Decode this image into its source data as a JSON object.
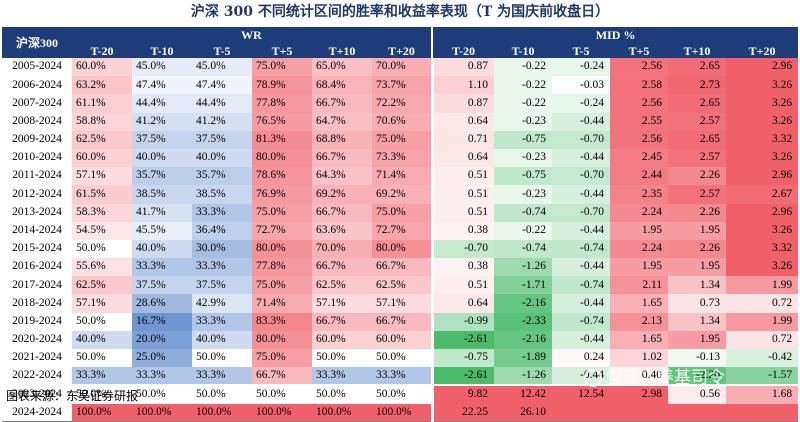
{
  "title": "沪深 300 不同统计区间的胜率和收益率表现（T 为国庆前收盘日）",
  "corner_label": "沪深300",
  "group_labels": {
    "wr": "WR",
    "mid": "MID %"
  },
  "columns": [
    "T-20",
    "T-10",
    "T-5",
    "T+5",
    "T+10",
    "T+20"
  ],
  "rows": [
    {
      "period": "2005-2024",
      "wr": [
        "60.0%",
        "45.0%",
        "45.0%",
        "75.0%",
        "65.0%",
        "70.0%"
      ],
      "mid": [
        "0.87",
        "-0.22",
        "-0.24",
        "2.56",
        "2.65",
        "2.96"
      ]
    },
    {
      "period": "2006-2024",
      "wr": [
        "63.2%",
        "47.4%",
        "47.4%",
        "78.9%",
        "68.4%",
        "73.7%"
      ],
      "mid": [
        "1.10",
        "-0.22",
        "-0.03",
        "2.58",
        "2.73",
        "3.26"
      ]
    },
    {
      "period": "2007-2024",
      "wr": [
        "61.1%",
        "44.4%",
        "44.4%",
        "77.8%",
        "66.7%",
        "72.2%"
      ],
      "mid": [
        "0.87",
        "-0.22",
        "-0.24",
        "2.56",
        "2.65",
        "3.26"
      ]
    },
    {
      "period": "2008-2024",
      "wr": [
        "58.8%",
        "41.2%",
        "41.2%",
        "76.5%",
        "64.7%",
        "70.6%"
      ],
      "mid": [
        "0.64",
        "-0.23",
        "-0.44",
        "2.55",
        "2.57",
        "3.26"
      ]
    },
    {
      "period": "2009-2024",
      "wr": [
        "62.5%",
        "37.5%",
        "37.5%",
        "81.3%",
        "68.8%",
        "75.0%"
      ],
      "mid": [
        "0.71",
        "-0.75",
        "-0.70",
        "2.56",
        "2.65",
        "3.32"
      ]
    },
    {
      "period": "2010-2024",
      "wr": [
        "60.0%",
        "40.0%",
        "40.0%",
        "80.0%",
        "66.7%",
        "73.3%"
      ],
      "mid": [
        "0.64",
        "-0.23",
        "-0.44",
        "2.45",
        "2.57",
        "3.26"
      ]
    },
    {
      "period": "2011-2024",
      "wr": [
        "57.1%",
        "35.7%",
        "35.7%",
        "78.6%",
        "64.3%",
        "71.4%"
      ],
      "mid": [
        "0.51",
        "-0.75",
        "-0.70",
        "2.44",
        "2.26",
        "2.96"
      ]
    },
    {
      "period": "2012-2024",
      "wr": [
        "61.5%",
        "38.5%",
        "38.5%",
        "76.9%",
        "69.2%",
        "69.2%"
      ],
      "mid": [
        "0.51",
        "-0.23",
        "-0.44",
        "2.35",
        "2.57",
        "2.67"
      ]
    },
    {
      "period": "2013-2024",
      "wr": [
        "58.3%",
        "41.7%",
        "33.3%",
        "75.0%",
        "66.7%",
        "75.0%"
      ],
      "mid": [
        "0.51",
        "-0.74",
        "-0.70",
        "2.24",
        "2.26",
        "2.96"
      ]
    },
    {
      "period": "2014-2024",
      "wr": [
        "54.5%",
        "45.5%",
        "36.4%",
        "72.7%",
        "63.6%",
        "72.7%"
      ],
      "mid": [
        "0.38",
        "-0.22",
        "-0.44",
        "1.95",
        "1.95",
        "3.26"
      ]
    },
    {
      "period": "2015-2024",
      "wr": [
        "50.0%",
        "40.0%",
        "30.0%",
        "80.0%",
        "70.0%",
        "80.0%"
      ],
      "mid": [
        "-0.70",
        "-0.74",
        "-0.74",
        "2.24",
        "2.26",
        "3.32"
      ]
    },
    {
      "period": "2016-2024",
      "wr": [
        "55.6%",
        "33.3%",
        "33.3%",
        "77.8%",
        "66.7%",
        "66.7%"
      ],
      "mid": [
        "0.38",
        "-1.26",
        "-0.44",
        "1.95",
        "1.95",
        "3.26"
      ]
    },
    {
      "period": "2017-2024",
      "wr": [
        "62.5%",
        "37.5%",
        "37.5%",
        "75.0%",
        "62.5%",
        "62.5%"
      ],
      "mid": [
        "0.51",
        "-1.71",
        "-0.74",
        "2.11",
        "1.34",
        "1.99"
      ]
    },
    {
      "period": "2018-2024",
      "wr": [
        "57.1%",
        "28.6%",
        "42.9%",
        "71.4%",
        "57.1%",
        "57.1%"
      ],
      "mid": [
        "0.64",
        "-2.16",
        "-0.44",
        "1.65",
        "0.73",
        "0.72"
      ]
    },
    {
      "period": "2019-2024",
      "wr": [
        "50.0%",
        "16.7%",
        "33.3%",
        "83.3%",
        "66.7%",
        "66.7%"
      ],
      "mid": [
        "-0.99",
        "-2.33",
        "-0.74",
        "2.13",
        "1.34",
        "1.99"
      ]
    },
    {
      "period": "2020-2024",
      "wr": [
        "40.0%",
        "20.0%",
        "40.0%",
        "80.0%",
        "60.0%",
        "60.0%"
      ],
      "mid": [
        "-2.61",
        "-2.16",
        "-0.44",
        "1.65",
        "1.95",
        "0.72"
      ]
    },
    {
      "period": "2021-2024",
      "wr": [
        "50.0%",
        "25.0%",
        "50.0%",
        "75.0%",
        "50.0%",
        "50.0%"
      ],
      "mid": [
        "-0.75",
        "-1.89",
        "0.24",
        "1.02",
        "-0.13",
        "-0.42"
      ]
    },
    {
      "period": "2022-2024",
      "wr": [
        "33.3%",
        "33.3%",
        "33.3%",
        "66.7%",
        "33.3%",
        "33.3%"
      ],
      "mid": [
        "-2.61",
        "-1.26",
        "-0.44",
        "0.40",
        "-2.20",
        "-1.57"
      ]
    },
    {
      "period": "2023-2024",
      "wr": [
        "50.0%",
        "50.0%",
        "50.0%",
        "50.0%",
        "50.0%",
        "50.0%"
      ],
      "mid": [
        "9.82",
        "12.42",
        "12.54",
        "2.98",
        "0.56",
        "1.68"
      ]
    },
    {
      "period": "2024-2024",
      "wr": [
        "100.0%",
        "100.0%",
        "100.0%",
        "100.0%",
        "100.0%",
        "100.0%"
      ],
      "mid": [
        "22.25",
        "26.10",
        "",
        "",
        "",
        ""
      ]
    }
  ],
  "source": "图表来源：东吴证券研报",
  "watermark": "雪球：养基司令",
  "colors": {
    "header_bg": "#1f3c7a",
    "title_text": "#1f3864",
    "positive": "#f0606a",
    "negative_wr": "#4f7ec8",
    "negative_mid": "#36b55a"
  }
}
